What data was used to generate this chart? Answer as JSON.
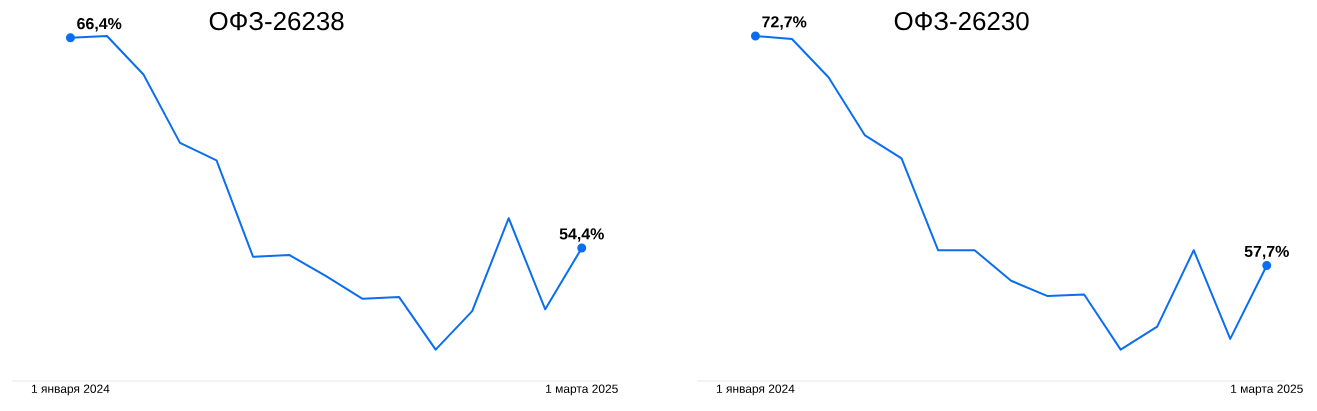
{
  "chart_data": [
    {
      "type": "line",
      "title": "ОФЗ-26238",
      "categories": [
        "1 января 2024",
        null,
        null,
        null,
        null,
        null,
        null,
        null,
        null,
        null,
        null,
        null,
        null,
        null,
        "1 марта 2025"
      ],
      "series": [
        {
          "color": "#0a6ef0",
          "values": [
            66.4,
            66.5,
            64.3,
            60.4,
            59.4,
            53.9,
            54.0,
            52.8,
            51.5,
            51.6,
            48.6,
            50.8,
            56.1,
            50.9,
            54.4
          ],
          "value_labels": [
            "66,4%",
            null,
            null,
            null,
            null,
            null,
            null,
            null,
            null,
            null,
            null,
            null,
            null,
            null,
            "54,4%"
          ]
        }
      ],
      "tick_labels": "x"
    },
    {
      "type": "line",
      "title": "ОФЗ-26230",
      "categories": [
        "1 января 2024",
        null,
        null,
        null,
        null,
        null,
        null,
        null,
        null,
        null,
        null,
        null,
        null,
        null,
        "1 марта 2025"
      ],
      "series": [
        {
          "color": "#0a6ef0",
          "values": [
            72.7,
            72.5,
            70.0,
            66.2,
            64.7,
            58.7,
            58.7,
            56.7,
            55.7,
            55.8,
            52.2,
            53.7,
            58.7,
            52.9,
            57.7
          ],
          "value_labels": [
            "72,7%",
            null,
            null,
            null,
            null,
            null,
            null,
            null,
            null,
            null,
            null,
            null,
            null,
            null,
            "57,7%"
          ]
        }
      ],
      "tick_labels": "x"
    }
  ]
}
